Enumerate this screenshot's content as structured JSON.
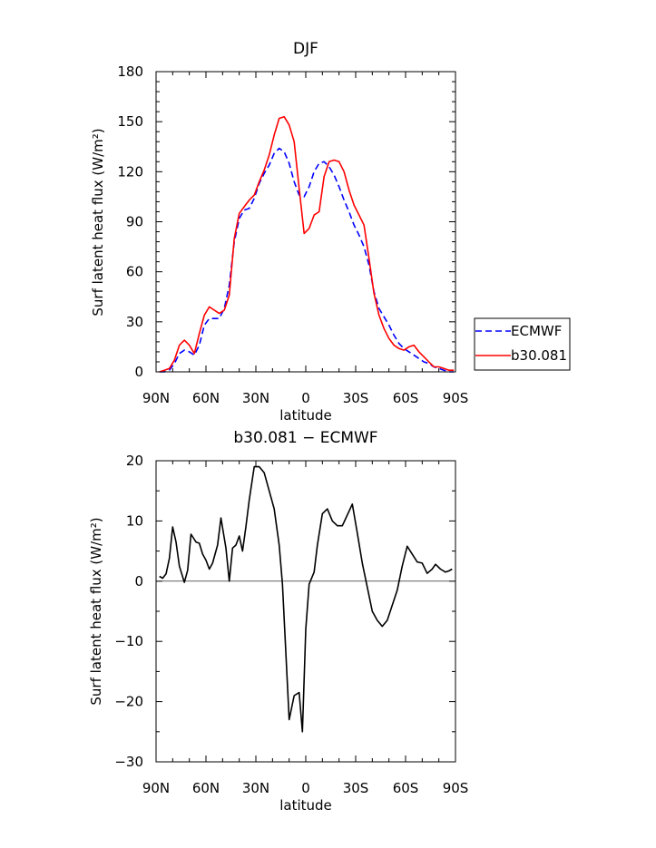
{
  "chart_data": [
    {
      "type": "line",
      "title": "DJF",
      "xlabel": "latitude",
      "ylabel": "Surf latent heat flux (W/m²)",
      "x_tick_labels": [
        "90N",
        "60N",
        "30N",
        "0",
        "30S",
        "60S",
        "90S"
      ],
      "y_tick_labels": [
        "0",
        "30",
        "60",
        "90",
        "120",
        "150",
        "180"
      ],
      "xlim": [
        -90,
        90
      ],
      "ylim": [
        0,
        180
      ],
      "legend_position": "right",
      "series": [
        {
          "name": "ECMWF",
          "color": "#0000ff",
          "style": "dashed",
          "x": [
            -88,
            -85,
            -82,
            -79,
            -76,
            -73,
            -70,
            -67,
            -64,
            -61,
            -58,
            -55,
            -52,
            -49,
            -46,
            -43,
            -40,
            -37,
            -34,
            -31,
            -28,
            -25,
            -22,
            -19,
            -16,
            -13,
            -10,
            -7,
            -4,
            -1,
            2,
            5,
            8,
            11,
            14,
            17,
            20,
            23,
            26,
            29,
            32,
            35,
            38,
            41,
            44,
            47,
            50,
            53,
            56,
            59,
            62,
            65,
            68,
            71,
            74,
            77,
            80,
            83,
            86,
            89
          ],
          "values": [
            0,
            0,
            1,
            5,
            11,
            13,
            12,
            10,
            16,
            28,
            32,
            32,
            32,
            38,
            52,
            78,
            92,
            97,
            98,
            104,
            113,
            119,
            124,
            131,
            134,
            132,
            125,
            114,
            106,
            105,
            111,
            120,
            125,
            126,
            123,
            118,
            111,
            103,
            96,
            88,
            82,
            75,
            64,
            48,
            38,
            33,
            28,
            22,
            17,
            14,
            12,
            10,
            8,
            6,
            5,
            3,
            2,
            1,
            0,
            0
          ]
        },
        {
          "name": "b30.081",
          "color": "#ff0000",
          "style": "solid",
          "x": [
            -88,
            -85,
            -82,
            -79,
            -76,
            -73,
            -70,
            -67,
            -64,
            -61,
            -58,
            -55,
            -52,
            -49,
            -46,
            -43,
            -40,
            -37,
            -34,
            -31,
            -28,
            -25,
            -22,
            -19,
            -16,
            -13,
            -10,
            -7,
            -4,
            -1,
            2,
            5,
            8,
            11,
            14,
            17,
            20,
            23,
            26,
            29,
            32,
            35,
            38,
            41,
            44,
            47,
            50,
            53,
            56,
            59,
            62,
            65,
            68,
            71,
            74,
            77,
            80,
            83,
            86,
            89
          ],
          "values": [
            0,
            1,
            2,
            7,
            16,
            19,
            16,
            11,
            23,
            34,
            39,
            37,
            35,
            37,
            46,
            80,
            95,
            99,
            103,
            106,
            114,
            121,
            130,
            142,
            152,
            153,
            148,
            138,
            110,
            83,
            86,
            94,
            96,
            117,
            126,
            127,
            126,
            120,
            109,
            100,
            94,
            88,
            68,
            47,
            34,
            26,
            20,
            16,
            14,
            13,
            15,
            16,
            12,
            9,
            6,
            3,
            3,
            2,
            1,
            1
          ]
        }
      ]
    },
    {
      "type": "line",
      "title": "b30.081 − ECMWF",
      "xlabel": "latitude",
      "ylabel": "Surf latent heat flux (W/m²)",
      "x_tick_labels": [
        "90N",
        "60N",
        "30N",
        "0",
        "30S",
        "60S",
        "90S"
      ],
      "y_tick_labels": [
        "−30",
        "−20",
        "−10",
        "0",
        "10",
        "20"
      ],
      "xlim": [
        -90,
        90
      ],
      "ylim": [
        -30,
        20
      ],
      "series": [
        {
          "color": "#000000",
          "style": "solid",
          "x": [
            -88,
            -86,
            -84,
            -82,
            -80,
            -78,
            -76,
            -73,
            -71,
            -69,
            -66,
            -64,
            -62,
            -60,
            -58,
            -56,
            -53,
            -51,
            -48,
            -46,
            -44,
            -42,
            -40,
            -38,
            -36,
            -34,
            -31,
            -28,
            -25,
            -22,
            -19,
            -16,
            -14,
            -10,
            -7,
            -4,
            -2,
            0,
            2,
            5,
            7,
            10,
            13,
            16,
            19,
            22,
            25,
            28,
            31,
            34,
            37,
            40,
            43,
            46,
            49,
            52,
            55,
            58,
            61,
            64,
            67,
            70,
            73,
            76,
            78,
            81,
            84,
            86,
            88
          ],
          "values": [
            0.8,
            0.5,
            1.2,
            3.8,
            9,
            6.5,
            2.5,
            -0.2,
            1.8,
            7.8,
            6.5,
            6.3,
            4.5,
            3.5,
            2,
            3,
            6,
            10.5,
            5.5,
            0,
            5.5,
            6,
            7.5,
            5,
            9,
            13.5,
            19,
            19,
            18,
            15,
            12,
            6,
            -0.5,
            -23,
            -19,
            -18.5,
            -25,
            -8,
            -0.5,
            1.5,
            6,
            11.2,
            12,
            10,
            9.2,
            9.2,
            11,
            12.8,
            8,
            3,
            -1,
            -5,
            -6.5,
            -7.5,
            -6.5,
            -4,
            -1.5,
            2.5,
            5.8,
            4.5,
            3.2,
            3,
            1.3,
            2,
            2.8,
            2,
            1.5,
            1.7,
            2
          ]
        }
      ]
    }
  ]
}
